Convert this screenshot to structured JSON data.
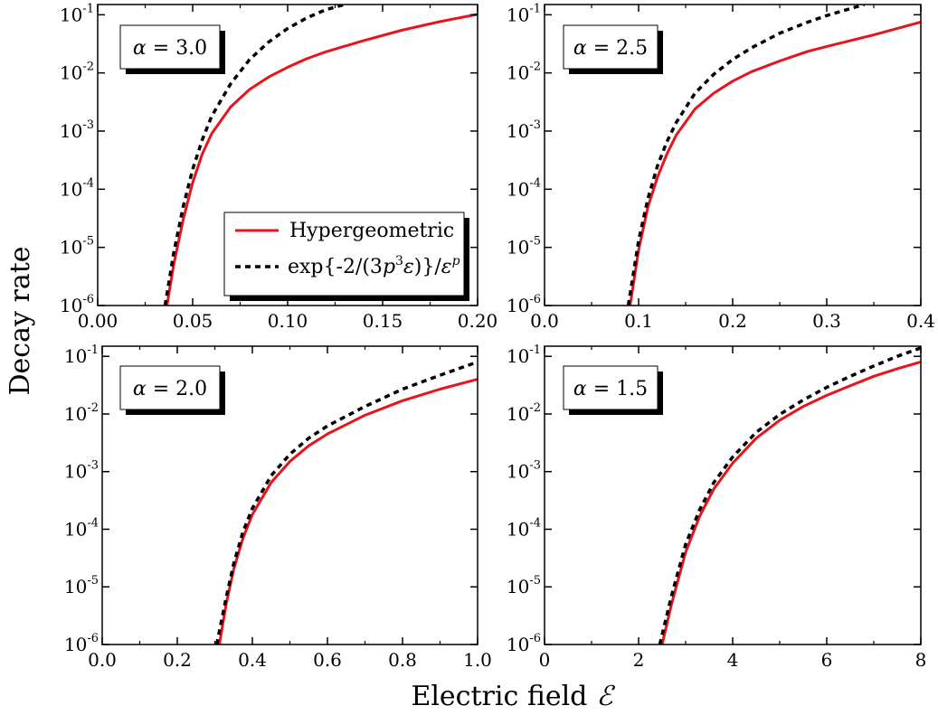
{
  "figure": {
    "ylabel": "Decay rate",
    "xlabel": "Electric field",
    "xlabel_symbol": "ℰ"
  },
  "legend": {
    "entries": [
      {
        "series": "Hypergeometric",
        "label": "Hypergeometric"
      },
      {
        "series": "exp{-2/(3p^3 ε)}/ε^p",
        "label_parts": [
          "exp{-2/(3",
          "p",
          "3",
          "ε)}/",
          "ε",
          "p"
        ]
      }
    ]
  },
  "colors": {
    "Hypergeometric": "#e8141b",
    "exp{-2/(3p^3 ε)}/ε^p": "#000000",
    "axes": "#000000",
    "background": "#ffffff"
  },
  "chart_data": [
    {
      "type": "line",
      "title": "α = 3.0",
      "x_ticks": [
        0.0,
        0.05,
        0.1,
        0.15,
        0.2
      ],
      "x_tick_labels": [
        "0.00",
        "0.05",
        "0.10",
        "0.15",
        "0.20"
      ],
      "xlim": [
        0.0,
        0.2
      ],
      "yscale": "log",
      "ylim": [
        1e-06,
        0.15
      ],
      "y_ticks": [
        1e-06,
        1e-05,
        0.0001,
        0.001,
        0.01,
        0.1
      ],
      "y_tick_labels": [
        {
          "base": "10",
          "exp": "-6"
        },
        {
          "base": "10",
          "exp": "-5"
        },
        {
          "base": "10",
          "exp": "-4"
        },
        {
          "base": "10",
          "exp": "-3"
        },
        {
          "base": "10",
          "exp": "-2"
        },
        {
          "base": "10",
          "exp": "-1"
        }
      ],
      "legend_position": "center-right",
      "series": [
        {
          "name": "Hypergeometric",
          "style": "solid",
          "x": [
            0.0365,
            0.04,
            0.045,
            0.05,
            0.055,
            0.06,
            0.07,
            0.08,
            0.09,
            0.1,
            0.11,
            0.12,
            0.14,
            0.16,
            0.18,
            0.2
          ],
          "y": [
            1e-06,
            5e-06,
            3e-05,
            0.00013,
            0.0004,
            0.0009,
            0.0026,
            0.0052,
            0.0085,
            0.0125,
            0.0175,
            0.023,
            0.036,
            0.054,
            0.076,
            0.102
          ]
        },
        {
          "name": "exp{-2/(3p^3 ε)}/ε^p",
          "style": "dashed",
          "x": [
            0.0355,
            0.04,
            0.045,
            0.05,
            0.055,
            0.06,
            0.07,
            0.08,
            0.09,
            0.1,
            0.11,
            0.12,
            0.13
          ],
          "y": [
            1e-06,
            8e-06,
            5e-05,
            0.00022,
            0.0007,
            0.0018,
            0.0065,
            0.017,
            0.034,
            0.058,
            0.088,
            0.122,
            0.15
          ]
        }
      ]
    },
    {
      "type": "line",
      "title": "α = 2.5",
      "x_ticks": [
        0.0,
        0.1,
        0.2,
        0.3,
        0.4
      ],
      "x_tick_labels": [
        "0.0",
        "0.1",
        "0.2",
        "0.3",
        "0.4"
      ],
      "xlim": [
        0.0,
        0.4
      ],
      "yscale": "log",
      "ylim": [
        1e-06,
        0.15
      ],
      "y_ticks": [
        1e-06,
        1e-05,
        0.0001,
        0.001,
        0.01,
        0.1
      ],
      "y_tick_labels": [
        {
          "base": "10",
          "exp": "-6"
        },
        {
          "base": "10",
          "exp": "-5"
        },
        {
          "base": "10",
          "exp": "-4"
        },
        {
          "base": "10",
          "exp": "-3"
        },
        {
          "base": "10",
          "exp": "-2"
        },
        {
          "base": "10",
          "exp": "-1"
        }
      ],
      "series": [
        {
          "name": "Hypergeometric",
          "style": "solid",
          "x": [
            0.091,
            0.1,
            0.11,
            0.12,
            0.13,
            0.14,
            0.16,
            0.18,
            0.2,
            0.22,
            0.25,
            0.28,
            0.3,
            0.35,
            0.4
          ],
          "y": [
            1e-06,
            9e-06,
            5e-05,
            0.00016,
            0.0004,
            0.00085,
            0.0024,
            0.0045,
            0.0072,
            0.0105,
            0.016,
            0.0235,
            0.0285,
            0.045,
            0.075
          ]
        },
        {
          "name": "exp{-2/(3p^3 ε)}/ε^p",
          "style": "dashed",
          "x": [
            0.089,
            0.1,
            0.11,
            0.12,
            0.13,
            0.14,
            0.16,
            0.18,
            0.2,
            0.22,
            0.25,
            0.28,
            0.3,
            0.34
          ],
          "y": [
            1e-06,
            1.3e-05,
            7e-05,
            0.00025,
            0.00065,
            0.0014,
            0.0045,
            0.0095,
            0.017,
            0.027,
            0.048,
            0.075,
            0.097,
            0.15
          ]
        }
      ]
    },
    {
      "type": "line",
      "title": "α = 2.0",
      "x_ticks": [
        0.0,
        0.2,
        0.4,
        0.6,
        0.8,
        1.0
      ],
      "x_tick_labels": [
        "0.0",
        "0.2",
        "0.4",
        "0.6",
        "0.8",
        "1.0"
      ],
      "xlim": [
        0.0,
        1.0
      ],
      "yscale": "log",
      "ylim": [
        1e-06,
        0.15
      ],
      "y_ticks": [
        1e-06,
        1e-05,
        0.0001,
        0.001,
        0.01,
        0.1
      ],
      "y_tick_labels": [
        {
          "base": "10",
          "exp": "-6"
        },
        {
          "base": "10",
          "exp": "-5"
        },
        {
          "base": "10",
          "exp": "-4"
        },
        {
          "base": "10",
          "exp": "-3"
        },
        {
          "base": "10",
          "exp": "-2"
        },
        {
          "base": "10",
          "exp": "-1"
        }
      ],
      "series": [
        {
          "name": "Hypergeometric",
          "style": "solid",
          "x": [
            0.312,
            0.33,
            0.35,
            0.375,
            0.4,
            0.45,
            0.5,
            0.55,
            0.6,
            0.7,
            0.8,
            0.9,
            1.0
          ],
          "y": [
            1e-06,
            5e-06,
            2e-05,
            7e-05,
            0.00018,
            0.00065,
            0.0015,
            0.0028,
            0.0045,
            0.0095,
            0.017,
            0.027,
            0.04
          ]
        },
        {
          "name": "exp{-2/(3p^3 ε)}/ε^p",
          "style": "dashed",
          "x": [
            0.305,
            0.33,
            0.35,
            0.375,
            0.4,
            0.45,
            0.5,
            0.55,
            0.6,
            0.7,
            0.8,
            0.9,
            1.0
          ],
          "y": [
            1e-06,
            6.5e-06,
            2.5e-05,
            9e-05,
            0.00023,
            0.00085,
            0.002,
            0.0038,
            0.0062,
            0.0135,
            0.027,
            0.047,
            0.08
          ]
        }
      ]
    },
    {
      "type": "line",
      "title": "α = 1.5",
      "x_ticks": [
        0,
        2,
        4,
        6,
        8
      ],
      "x_tick_labels": [
        "0",
        "2",
        "4",
        "6",
        "8"
      ],
      "xlim": [
        0,
        8
      ],
      "yscale": "log",
      "ylim": [
        1e-06,
        0.15
      ],
      "y_ticks": [
        1e-06,
        1e-05,
        0.0001,
        0.001,
        0.01,
        0.1
      ],
      "y_tick_labels": [
        {
          "base": "10",
          "exp": "-6"
        },
        {
          "base": "10",
          "exp": "-5"
        },
        {
          "base": "10",
          "exp": "-4"
        },
        {
          "base": "10",
          "exp": "-3"
        },
        {
          "base": "10",
          "exp": "-2"
        },
        {
          "base": "10",
          "exp": "-1"
        }
      ],
      "series": [
        {
          "name": "Hypergeometric",
          "style": "solid",
          "x": [
            2.5,
            2.7,
            3.0,
            3.3,
            3.6,
            4.0,
            4.5,
            5.0,
            5.5,
            6.0,
            6.5,
            7.0,
            7.5,
            8.0
          ],
          "y": [
            1e-06,
            5e-06,
            4e-05,
            0.00017,
            0.0005,
            0.0014,
            0.0038,
            0.0078,
            0.0135,
            0.021,
            0.031,
            0.045,
            0.061,
            0.08
          ]
        },
        {
          "name": "exp{-2/(3p^3 ε)}/ε^p",
          "style": "dashed",
          "x": [
            2.45,
            2.7,
            3.0,
            3.3,
            3.6,
            4.0,
            4.5,
            5.0,
            5.5,
            6.0,
            6.5,
            7.0,
            7.5,
            8.0
          ],
          "y": [
            1e-06,
            7e-06,
            5.5e-05,
            0.00022,
            0.00065,
            0.0018,
            0.0048,
            0.0098,
            0.0175,
            0.029,
            0.045,
            0.068,
            0.1,
            0.14
          ]
        }
      ]
    }
  ]
}
